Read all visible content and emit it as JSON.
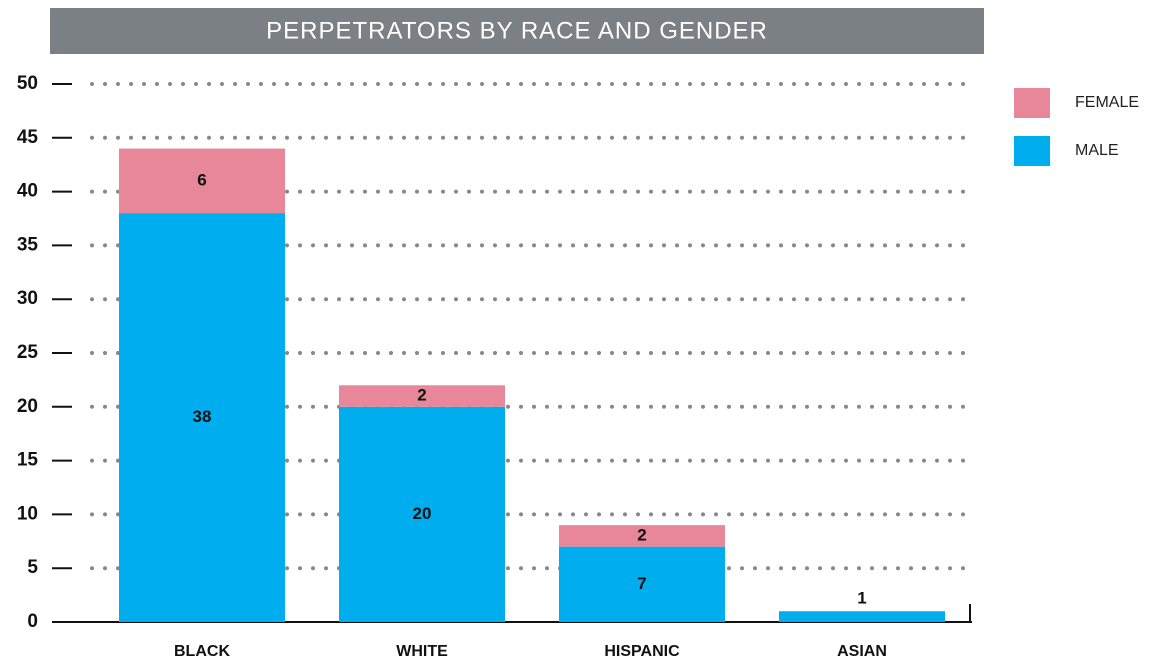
{
  "chart_data": {
    "type": "stacked_bar",
    "title": "PERPETRATORS BY RACE AND GENDER",
    "categories": [
      "BLACK",
      "WHITE",
      "HISPANIC",
      "ASIAN"
    ],
    "series": [
      {
        "name": "MALE",
        "color": "#00aeef",
        "values": [
          38,
          20,
          7,
          1
        ]
      },
      {
        "name": "FEMALE",
        "color": "#e8869a",
        "values": [
          6,
          2,
          2,
          0
        ]
      }
    ],
    "ylim": [
      0,
      50
    ],
    "yticks": [
      0,
      5,
      10,
      15,
      20,
      25,
      30,
      35,
      40,
      45,
      50
    ],
    "grid": true,
    "legend": "right"
  }
}
